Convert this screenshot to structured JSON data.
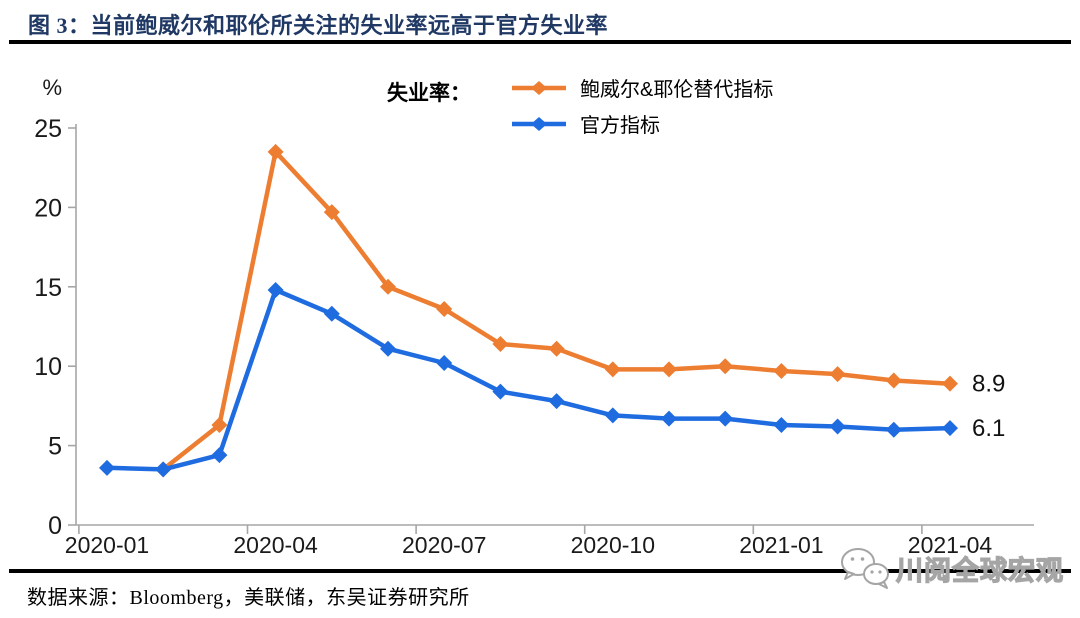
{
  "title": "图 3：当前鲍威尔和耶伦所关注的失业率远高于官方失业率",
  "legend": {
    "prefix": "失业率：",
    "items": [
      {
        "label": "鲍威尔&耶伦替代指标",
        "color": "#ED7D31"
      },
      {
        "label": "官方指标",
        "color": "#1F6BE0"
      }
    ]
  },
  "chart_data": {
    "type": "line",
    "title": "失业率",
    "ylabel": "%",
    "ylim": [
      0,
      25
    ],
    "yticks": [
      0,
      5,
      10,
      15,
      20,
      25
    ],
    "x": [
      "2020-01",
      "2020-02",
      "2020-03",
      "2020-04",
      "2020-05",
      "2020-06",
      "2020-07",
      "2020-08",
      "2020-09",
      "2020-10",
      "2020-11",
      "2020-12",
      "2021-01",
      "2021-02",
      "2021-03",
      "2021-04"
    ],
    "x_tick_labels": [
      "2020-01",
      "2020-04",
      "2020-07",
      "2020-10",
      "2021-01",
      "2021-04"
    ],
    "grid": false,
    "legend_position": "top-center",
    "series": [
      {
        "name": "鲍威尔&耶伦替代指标",
        "color": "#ED7D31",
        "marker": "diamond",
        "end_label": "8.9",
        "values": [
          null,
          3.5,
          6.3,
          23.5,
          19.7,
          15.0,
          13.6,
          11.4,
          11.1,
          9.8,
          9.8,
          10.0,
          9.7,
          9.5,
          9.1,
          8.9
        ]
      },
      {
        "name": "官方指标",
        "color": "#1F6BE0",
        "marker": "diamond",
        "end_label": "6.1",
        "values": [
          3.6,
          3.5,
          4.4,
          14.8,
          13.3,
          11.1,
          10.2,
          8.4,
          7.8,
          6.9,
          6.7,
          6.7,
          6.3,
          6.2,
          6.0,
          6.1
        ]
      }
    ]
  },
  "source": "数据来源：Bloomberg，美联储，东吴证券研究所",
  "watermark": "川阅全球宏观",
  "colors": {
    "title_navy": "#1F3864",
    "axis_gray": "#A6A6A6",
    "tick_text": "#1a1a1a",
    "rule_black": "#000000",
    "watermark_gray": "#a5a5a5"
  }
}
